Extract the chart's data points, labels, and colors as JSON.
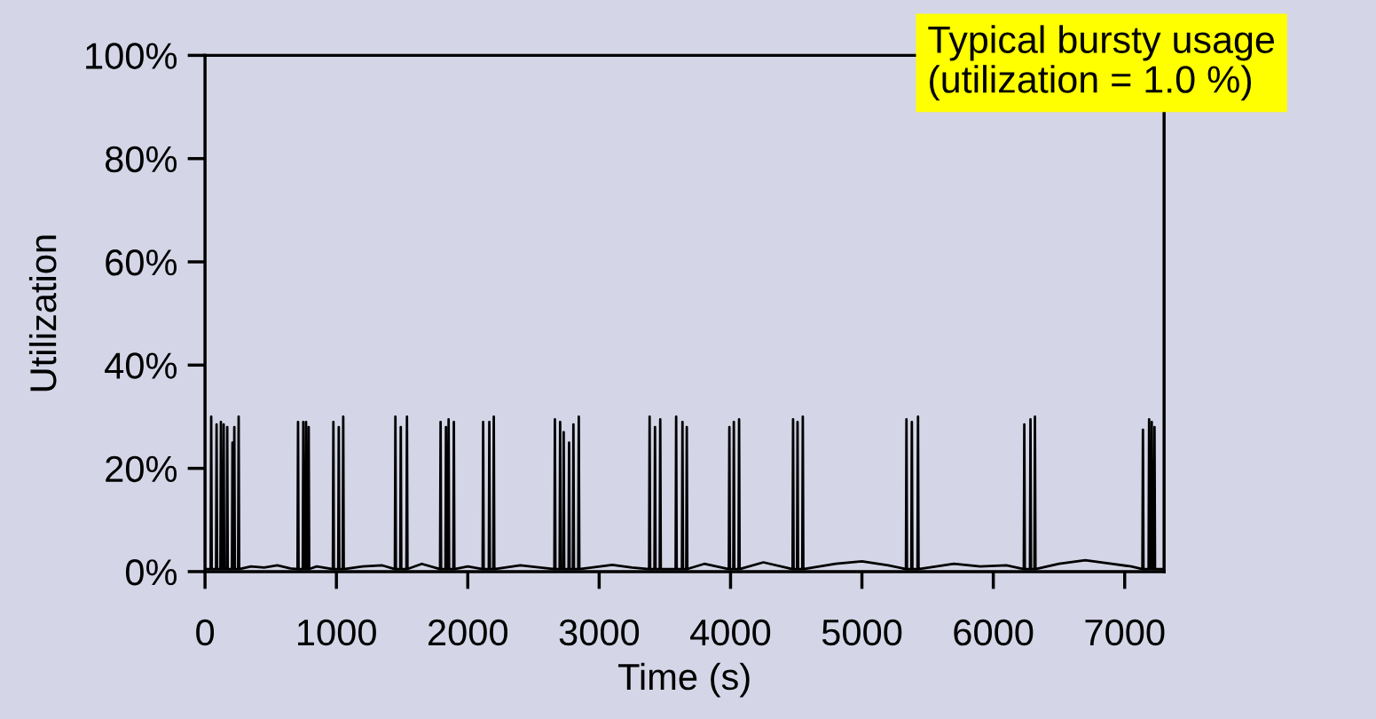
{
  "chart_data": {
    "type": "line",
    "xlabel": "Time (s)",
    "ylabel": "Utilization",
    "annotations": [
      "Typical bursty usage\n(utilization = 1.0 %)"
    ],
    "xlim": [
      0,
      7300
    ],
    "xticks": [
      0,
      1000,
      2000,
      3000,
      4000,
      5000,
      6000,
      7000
    ],
    "ylim": [
      0,
      100
    ],
    "yticks": [
      {
        "value": 0,
        "label": "0%"
      },
      {
        "value": 20,
        "label": "20%"
      },
      {
        "value": 40,
        "label": "40%"
      },
      {
        "value": 60,
        "label": "60%"
      },
      {
        "value": 80,
        "label": "80%"
      },
      {
        "value": 100,
        "label": "100%"
      }
    ],
    "series": [
      {
        "color": "#000000",
        "x": [
          0,
          43,
          47,
          51,
          84,
          88,
          92,
          117,
          121,
          125,
          138,
          142,
          146,
          165,
          169,
          173,
          205,
          209,
          213,
          219,
          223,
          227,
          252,
          256,
          260,
          350,
          450,
          550,
          650,
          704,
          708,
          712,
          744,
          748,
          752,
          765,
          769,
          773,
          785,
          789,
          793,
          850,
          973,
          977,
          981,
          1014,
          1018,
          1022,
          1048,
          1052,
          1056,
          1200,
          1350,
          1445,
          1449,
          1453,
          1486,
          1490,
          1494,
          1533,
          1537,
          1541,
          1650,
          1789,
          1793,
          1797,
          1830,
          1834,
          1838,
          1850,
          1854,
          1858,
          1890,
          1894,
          1898,
          2000,
          2113,
          2117,
          2121,
          2160,
          2164,
          2168,
          2194,
          2198,
          2202,
          2400,
          2659,
          2663,
          2667,
          2699,
          2703,
          2707,
          2726,
          2730,
          2734,
          2767,
          2771,
          2775,
          2800,
          2804,
          2808,
          2841,
          2845,
          2849,
          3100,
          3250,
          3380,
          3384,
          3388,
          3421,
          3425,
          3429,
          3461,
          3465,
          3469,
          3582,
          3586,
          3590,
          3630,
          3634,
          3638,
          3663,
          3667,
          3671,
          3800,
          3987,
          3991,
          3995,
          4021,
          4025,
          4029,
          4061,
          4065,
          4069,
          4250,
          4472,
          4476,
          4480,
          4506,
          4510,
          4514,
          4546,
          4550,
          4554,
          4800,
          5000,
          5200,
          5335,
          5339,
          5343,
          5376,
          5380,
          5384,
          5423,
          5427,
          5431,
          5700,
          5900,
          6100,
          6232,
          6236,
          6240,
          6279,
          6283,
          6287,
          6313,
          6317,
          6321,
          6500,
          6700,
          6900,
          7050,
          7135,
          7139,
          7143,
          7182,
          7186,
          7190,
          7202,
          7206,
          7210,
          7223,
          7227,
          7231,
          7300
        ],
        "values": [
          0.5,
          0.5,
          30,
          0.5,
          0.5,
          28.5,
          0.5,
          0.5,
          29,
          0.5,
          0.5,
          28.5,
          0.5,
          0.5,
          28,
          0.5,
          0.5,
          25,
          0.5,
          0.5,
          28,
          0.5,
          0.5,
          30,
          0.5,
          1,
          0.8,
          1.2,
          0.6,
          0.5,
          29,
          0.5,
          0.5,
          29,
          0.5,
          0.5,
          29,
          0.5,
          0.5,
          28,
          0.5,
          1,
          0.5,
          29,
          0.5,
          0.5,
          28,
          0.5,
          0.5,
          30,
          0.5,
          1,
          1.2,
          0.5,
          30,
          0.5,
          0.5,
          28,
          0.5,
          0.5,
          30,
          0.5,
          1.5,
          0.5,
          29,
          0.5,
          0.5,
          28,
          0.5,
          0.5,
          29.5,
          0.5,
          0.5,
          29,
          0.5,
          1,
          0.5,
          29,
          0.5,
          0.5,
          29,
          0.5,
          0.5,
          30,
          0.5,
          1.2,
          0.5,
          29.5,
          0.5,
          0.5,
          29,
          0.5,
          0.5,
          27,
          0.5,
          0.5,
          25,
          0.5,
          0.5,
          28.5,
          0.5,
          0.5,
          30,
          0.5,
          1.3,
          0.8,
          0.5,
          30,
          0.5,
          0.5,
          28,
          0.5,
          0.5,
          29.5,
          0.5,
          0.5,
          30,
          0.5,
          0.5,
          29,
          0.5,
          0.5,
          28,
          0.5,
          1.5,
          0.5,
          28,
          0.5,
          0.5,
          29,
          0.5,
          0.5,
          29.5,
          0.5,
          1.8,
          0.5,
          29.5,
          0.5,
          0.5,
          29,
          0.5,
          0.5,
          30,
          0.5,
          1.5,
          2,
          1.2,
          0.5,
          29.5,
          0.5,
          0.5,
          29,
          0.5,
          0.5,
          30,
          0.5,
          1.5,
          1,
          1.2,
          0.5,
          28.5,
          0.5,
          0.5,
          29.5,
          0.5,
          0.5,
          30,
          0.5,
          1.5,
          2.2,
          1.5,
          1,
          0.5,
          27.5,
          0.5,
          0.5,
          29.5,
          0.5,
          0.5,
          29,
          0.5,
          0.5,
          28,
          0.5,
          0.5
        ]
      }
    ]
  }
}
